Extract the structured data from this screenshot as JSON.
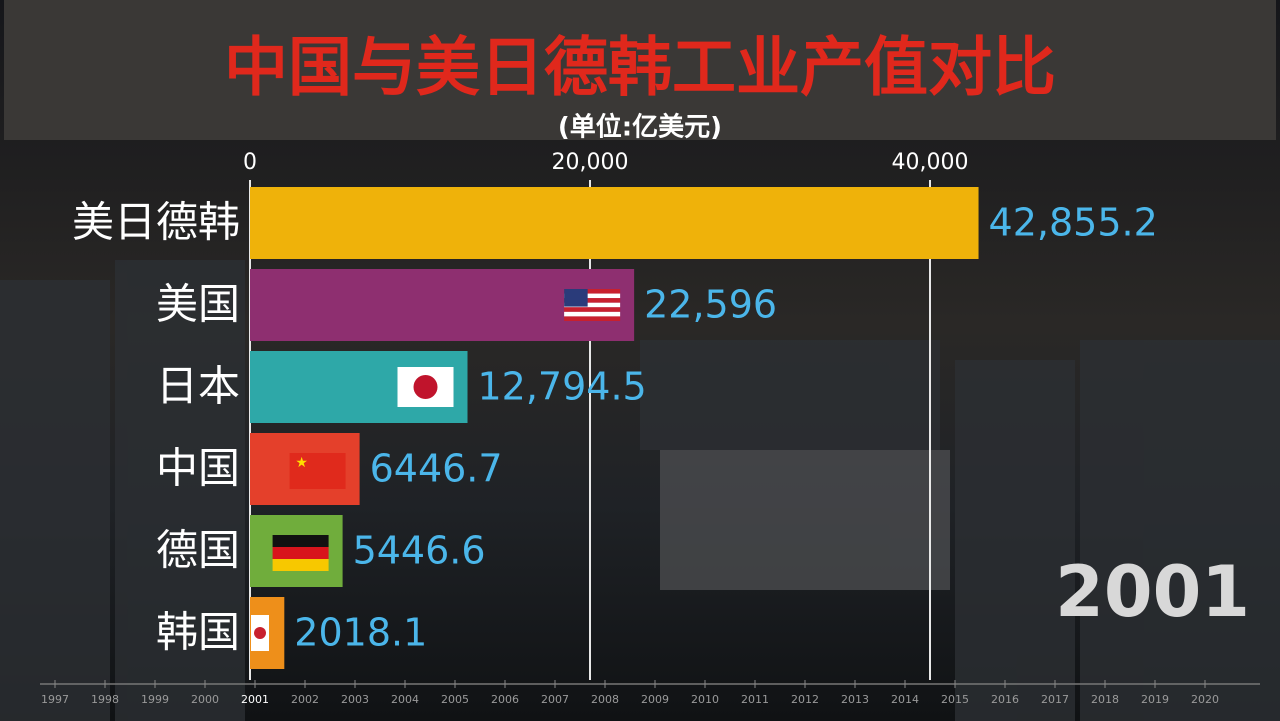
{
  "chart_data": {
    "type": "hbar",
    "title": "中国与美日德韩工业产值对比",
    "subtitle": "(单位:亿美元)",
    "categories": [
      "美日德韩",
      "美国",
      "日本",
      "中国",
      "德国",
      "韩国"
    ],
    "values": [
      42855.2,
      22596,
      12794.5,
      6446.7,
      5446.6,
      2018.1
    ],
    "value_labels": [
      "42,855.2",
      "22,596",
      "12,794.5",
      "6446.7",
      "5446.6",
      "2018.1"
    ],
    "colors": [
      "#efb20a",
      "#8e2f70",
      "#2ea8a8",
      "#e4402b",
      "#70ad3c",
      "#ee8f1a"
    ],
    "xlim": [
      0,
      60000
    ],
    "xticks": [
      0,
      {
        "value": 20000,
        "label": "20,000"
      },
      {
        "value": 40000,
        "label": "40,000"
      }
    ],
    "grid": true,
    "year": "2001",
    "timeline": [
      1997,
      1998,
      1999,
      2000,
      2001,
      2002,
      2003,
      2004,
      2005,
      2006,
      2007,
      2008,
      2009,
      2010,
      2011,
      2012,
      2013,
      2014,
      2015,
      2016,
      2017,
      2018,
      2019,
      2020
    ]
  }
}
